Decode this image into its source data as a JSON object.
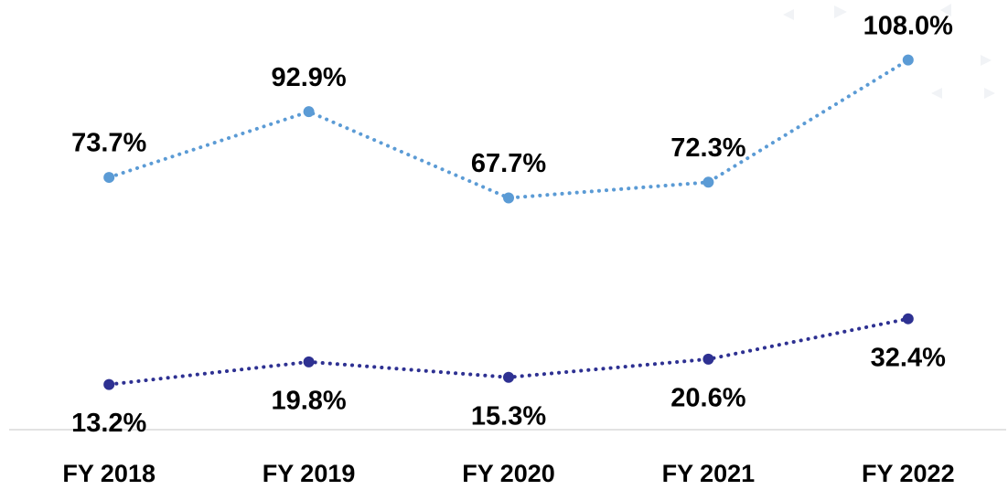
{
  "chart_data": {
    "type": "line",
    "categories": [
      "FY 2018",
      "FY 2019",
      "FY 2020",
      "FY 2021",
      "FY 2022"
    ],
    "series": [
      {
        "color": "#5b9bd5",
        "values": [
          73.7,
          92.9,
          67.7,
          72.3,
          108.0
        ],
        "value_labels": [
          "73.7%",
          "92.9%",
          "67.7%",
          "72.3%",
          "108.0%"
        ]
      },
      {
        "color": "#2e3192",
        "values": [
          13.2,
          19.8,
          15.3,
          20.6,
          32.4
        ],
        "value_labels": [
          "13.2%",
          "19.8%",
          "15.3%",
          "20.6%",
          "32.4%"
        ]
      }
    ],
    "ylim": [
      0,
      125
    ]
  }
}
